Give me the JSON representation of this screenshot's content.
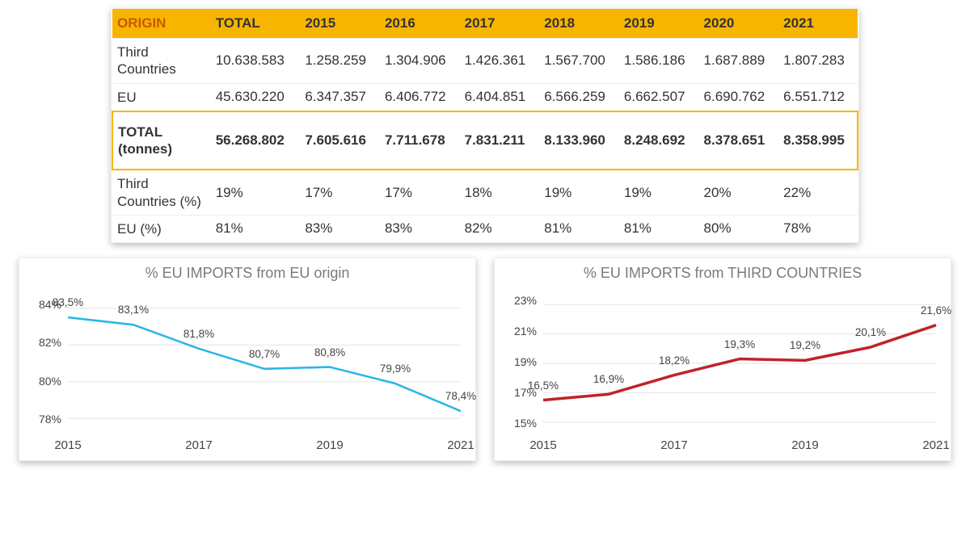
{
  "table": {
    "columns": [
      "ORIGIN",
      "TOTAL",
      "2015",
      "2016",
      "2017",
      "2018",
      "2019",
      "2020",
      "2021"
    ],
    "col_widths_pct": [
      13.2,
      12.0,
      10.7,
      10.7,
      10.7,
      10.7,
      10.7,
      10.7,
      10.6
    ],
    "rows": [
      {
        "label": "Third Countries",
        "cells": [
          "10.638.583",
          "1.258.259",
          "1.304.906",
          "1.426.361",
          "1.567.700",
          "1.586.186",
          "1.687.889",
          "1.807.283"
        ]
      },
      {
        "label": "EU",
        "cells": [
          "45.630.220",
          "6.347.357",
          "6.406.772",
          "6.404.851",
          "6.566.259",
          "6.662.507",
          "6.690.762",
          "6.551.712"
        ]
      },
      {
        "label": "TOTAL (tonnes)",
        "cells": [
          "56.268.802",
          "7.605.616",
          "7.711.678",
          "7.831.211",
          "8.133.960",
          "8.248.692",
          "8.378.651",
          "8.358.995"
        ],
        "highlight": true
      },
      {
        "label": "Third Countries (%)",
        "cells": [
          "19%",
          "17%",
          "17%",
          "18%",
          "19%",
          "19%",
          "20%",
          "22%"
        ]
      },
      {
        "label": "EU (%)",
        "cells": [
          "81%",
          "83%",
          "83%",
          "82%",
          "81%",
          "81%",
          "80%",
          "78%"
        ]
      }
    ],
    "header_bg": "#f7b500",
    "header_origin_color": "#c75a00"
  },
  "chart_left": {
    "type": "line",
    "title": "% EU IMPORTS from EU origin",
    "line_color": "#29b6e8",
    "line_width": 2.5,
    "marker": "none",
    "x_years": [
      2015,
      2016,
      2017,
      2018,
      2019,
      2020,
      2021
    ],
    "values": [
      83.5,
      83.1,
      81.8,
      80.7,
      80.8,
      79.9,
      78.4
    ],
    "value_labels": [
      "83,5%",
      "83,1%",
      "81,8%",
      "80,7%",
      "80,8%",
      "79,9%",
      "78,4%"
    ],
    "ylim": [
      77,
      85
    ],
    "yticks": [
      78,
      80,
      82,
      84
    ],
    "ytick_labels": [
      "78%",
      "80%",
      "82%",
      "84%"
    ],
    "xticks": [
      2015,
      2017,
      2019,
      2021
    ],
    "grid_color": "#e6e6e6",
    "title_color": "#7a7a7a",
    "title_fontsize": 18,
    "background_color": "#ffffff"
  },
  "chart_right": {
    "type": "line",
    "title": "% EU IMPORTS from THIRD COUNTRIES",
    "line_color": "#c0232a",
    "line_width": 3.5,
    "marker": "none",
    "x_years": [
      2015,
      2016,
      2017,
      2018,
      2019,
      2020,
      2021
    ],
    "values": [
      16.5,
      16.9,
      18.2,
      19.3,
      19.2,
      20.1,
      21.6
    ],
    "value_labels": [
      "16,5%",
      "16,9%",
      "18,2%",
      "19,3%",
      "19,2%",
      "20,1%",
      "21,6%"
    ],
    "ylim": [
      14,
      24
    ],
    "yticks": [
      15,
      17,
      19,
      21,
      23
    ],
    "ytick_labels": [
      "15%",
      "17%",
      "19%",
      "21%",
      "23%"
    ],
    "xticks": [
      2015,
      2017,
      2019,
      2021
    ],
    "grid_color": "#e6e6e6",
    "title_color": "#7a7a7a",
    "title_fontsize": 18,
    "background_color": "#ffffff"
  }
}
